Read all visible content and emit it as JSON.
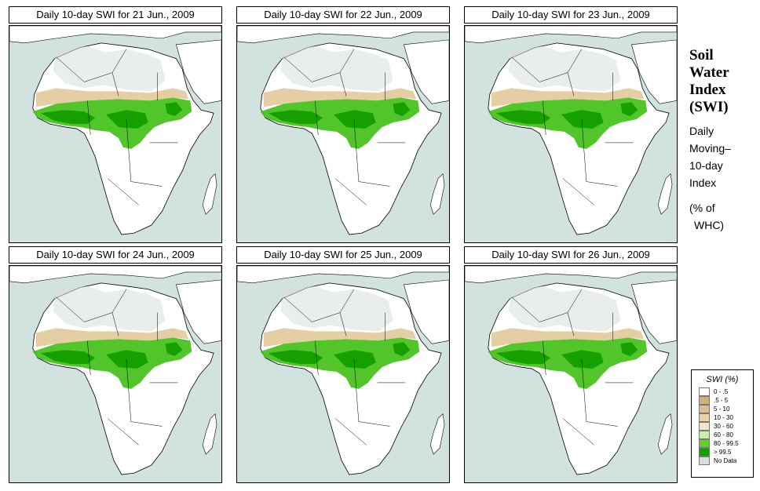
{
  "panels": [
    {
      "title": "Daily 10-day SWI for  21 Jun., 2009"
    },
    {
      "title": "Daily 10-day SWI for  22 Jun., 2009"
    },
    {
      "title": "Daily 10-day SWI for  23 Jun., 2009"
    },
    {
      "title": "Daily 10-day SWI for  24 Jun., 2009"
    },
    {
      "title": "Daily 10-day SWI for  25 Jun., 2009"
    },
    {
      "title": "Daily 10-day SWI for  26 Jun., 2009"
    }
  ],
  "side": {
    "title_lines": [
      "Soil",
      "Water",
      "Index",
      "(SWI)"
    ],
    "sub_lines": [
      "Daily",
      "Moving–",
      "10-day",
      "Index"
    ],
    "unit_lines": [
      "(% of",
      "WHC)"
    ]
  },
  "legend": {
    "title": "SWI (%)",
    "items": [
      {
        "label": "0 - .5",
        "color": "#ffffff"
      },
      {
        "label": ".5 - 5",
        "color": "#d2b07a"
      },
      {
        "label": "5 - 10",
        "color": "#dcc08f"
      },
      {
        "label": "10 - 30",
        "color": "#ead3a8"
      },
      {
        "label": "30 - 60",
        "color": "#f3e6c6"
      },
      {
        "label": "60 - 80",
        "color": "#c8f0a8"
      },
      {
        "label": "80 - 99.5",
        "color": "#5fd12a"
      },
      {
        "label": "> 99.5",
        "color": "#16a000"
      },
      {
        "label": "No Data",
        "color": "#d7dedb"
      }
    ]
  },
  "colors": {
    "ocean": "#d2e2de",
    "land": "#ffffff",
    "desert_nodata": "#d7dedb",
    "dry": "#e3c99a",
    "wet": "#3fbf14",
    "very_wet": "#16a000"
  }
}
